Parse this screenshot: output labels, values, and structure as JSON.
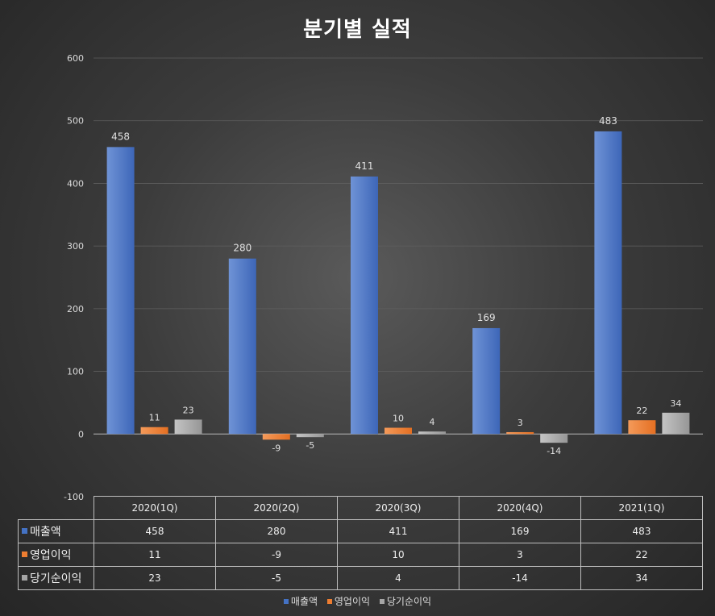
{
  "chart_data": {
    "type": "bar",
    "title": "분기별 실적",
    "categories": [
      "2020(1Q)",
      "2020(2Q)",
      "2020(3Q)",
      "2020(4Q)",
      "2021(1Q)"
    ],
    "series": [
      {
        "name": "매출액",
        "color": "#4472c4",
        "values": [
          458,
          280,
          411,
          169,
          483
        ]
      },
      {
        "name": "영업이익",
        "color": "#ed7d31",
        "values": [
          11,
          -9,
          10,
          3,
          22
        ]
      },
      {
        "name": "당기순이익",
        "color": "#a5a5a5",
        "values": [
          23,
          -5,
          4,
          -14,
          34
        ]
      }
    ],
    "ylim": [
      -100,
      600
    ],
    "yticks": [
      600,
      500,
      400,
      300,
      200,
      100,
      0,
      -100
    ],
    "grid": true,
    "legend_position": "bottom",
    "data_table": true
  }
}
